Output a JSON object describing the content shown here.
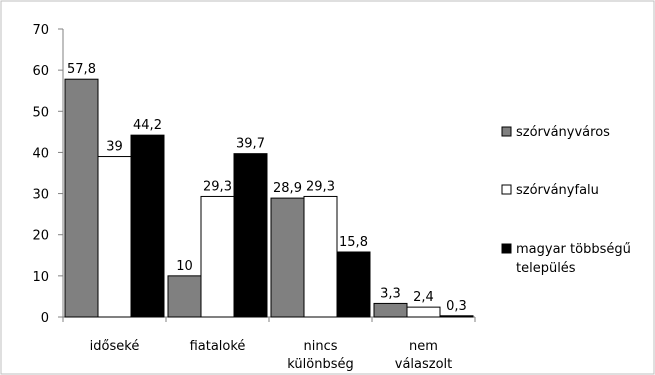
{
  "chart_data": {
    "type": "bar",
    "categories": [
      [
        "időseké"
      ],
      [
        "fiataloké"
      ],
      [
        "nincs",
        "különbség"
      ],
      [
        "nem",
        "válaszolt"
      ]
    ],
    "series": [
      {
        "name": "szórványváros",
        "color": "#808080",
        "values": [
          57.8,
          10,
          28.9,
          3.3
        ],
        "labels": [
          "57,8",
          "10",
          "28,9",
          "3,3"
        ]
      },
      {
        "name": "szórványfalu",
        "color": "#ffffff",
        "values": [
          39,
          29.3,
          29.3,
          2.4
        ],
        "labels": [
          "39",
          "29,3",
          "29,3",
          "2,4"
        ]
      },
      {
        "name": [
          "magyar többségű",
          "település"
        ],
        "color": "#000000",
        "values": [
          44.2,
          39.7,
          15.8,
          0.3
        ],
        "labels": [
          "44,2",
          "39,7",
          "15,8",
          "0,3"
        ]
      }
    ],
    "ylim": [
      0,
      70
    ],
    "yticks": [
      0,
      10,
      20,
      30,
      40,
      50,
      60,
      70
    ],
    "grid": false,
    "legend_position": "right"
  }
}
